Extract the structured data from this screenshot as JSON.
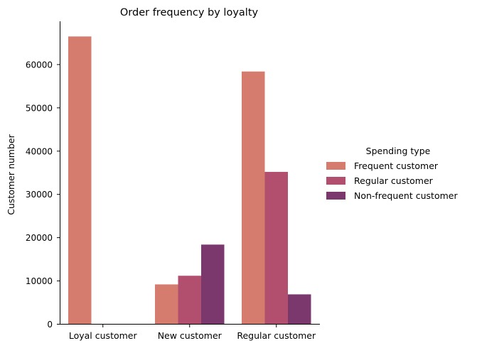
{
  "chart_data": {
    "type": "bar",
    "title": "Order frequency by loyalty",
    "xlabel": "",
    "ylabel": "Customer number",
    "categories": [
      "Loyal customer",
      "New customer",
      "Regular customer"
    ],
    "series": [
      {
        "name": "Frequent customer",
        "values": [
          66500,
          9200,
          58400
        ],
        "color": "#d67c6e"
      },
      {
        "name": "Regular customer",
        "values": [
          0,
          11200,
          35200
        ],
        "color": "#b24f6f"
      },
      {
        "name": "Non-frequent customer",
        "values": [
          0,
          18400,
          6900
        ],
        "color": "#7a386c"
      }
    ],
    "ylim": [
      0,
      70000
    ],
    "yticks": [
      0,
      10000,
      20000,
      30000,
      40000,
      50000,
      60000
    ],
    "legend": {
      "title": "Spending type",
      "placement": "right"
    },
    "grid": false
  }
}
